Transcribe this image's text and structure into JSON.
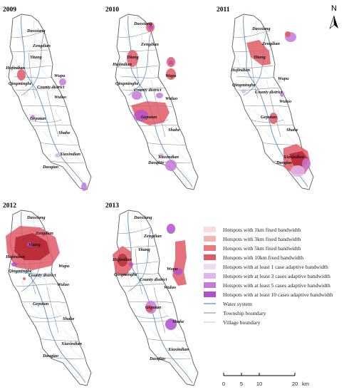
{
  "years": [
    "2009",
    "2010",
    "2011",
    "2012",
    "2013"
  ],
  "places": {
    "daoxiang": "Daoxiang",
    "zengdian": "Zengdian",
    "yitang": "Yitang",
    "hujindian": "Hujindian",
    "wupu": "Wupu",
    "qingminghe": "Qingminghe",
    "county": "County district",
    "wuluo": "Wuluo",
    "geputan": "Geputan",
    "shahe": "Shahe",
    "xiaxindian": "Xiaxindian",
    "daoqiao": "Daoqiao"
  },
  "north": "N",
  "legend": {
    "items": [
      {
        "label": "Hotspots with 1km fixed bandwidth",
        "color": "#f6dede"
      },
      {
        "label": "Hotspots with 3km fixed bandwidth",
        "color": "#f1b5b5"
      },
      {
        "label": "Hotspots with 5km fixed bandwidth",
        "color": "#ea7a7a"
      },
      {
        "label": "Hotspots with 10km fixed bandwidth",
        "color": "#df5a66"
      },
      {
        "label": "Hotspots with at least 1 case adaptive bandwidth",
        "color": "#efdcf2"
      },
      {
        "label": "Hotspots with at least 3 cases adaptive bandwidth",
        "color": "#dfb6ea"
      },
      {
        "label": "Hotspots with at least 5 cases adaptive bandwidth",
        "color": "#c67ad8"
      },
      {
        "label": "Hotspots with at least 10 cases adaptive bandwidth",
        "color": "#b04fcf"
      }
    ],
    "lines": [
      {
        "label": "Water system",
        "color": "#5a8fc4"
      },
      {
        "label": "Township boundary",
        "color": "#8a8a8a"
      },
      {
        "label": "Village boundary",
        "color": "#c4c4c4"
      }
    ]
  },
  "scale": {
    "ticks": [
      "0",
      "5",
      "10",
      "20"
    ],
    "unit": "km"
  }
}
